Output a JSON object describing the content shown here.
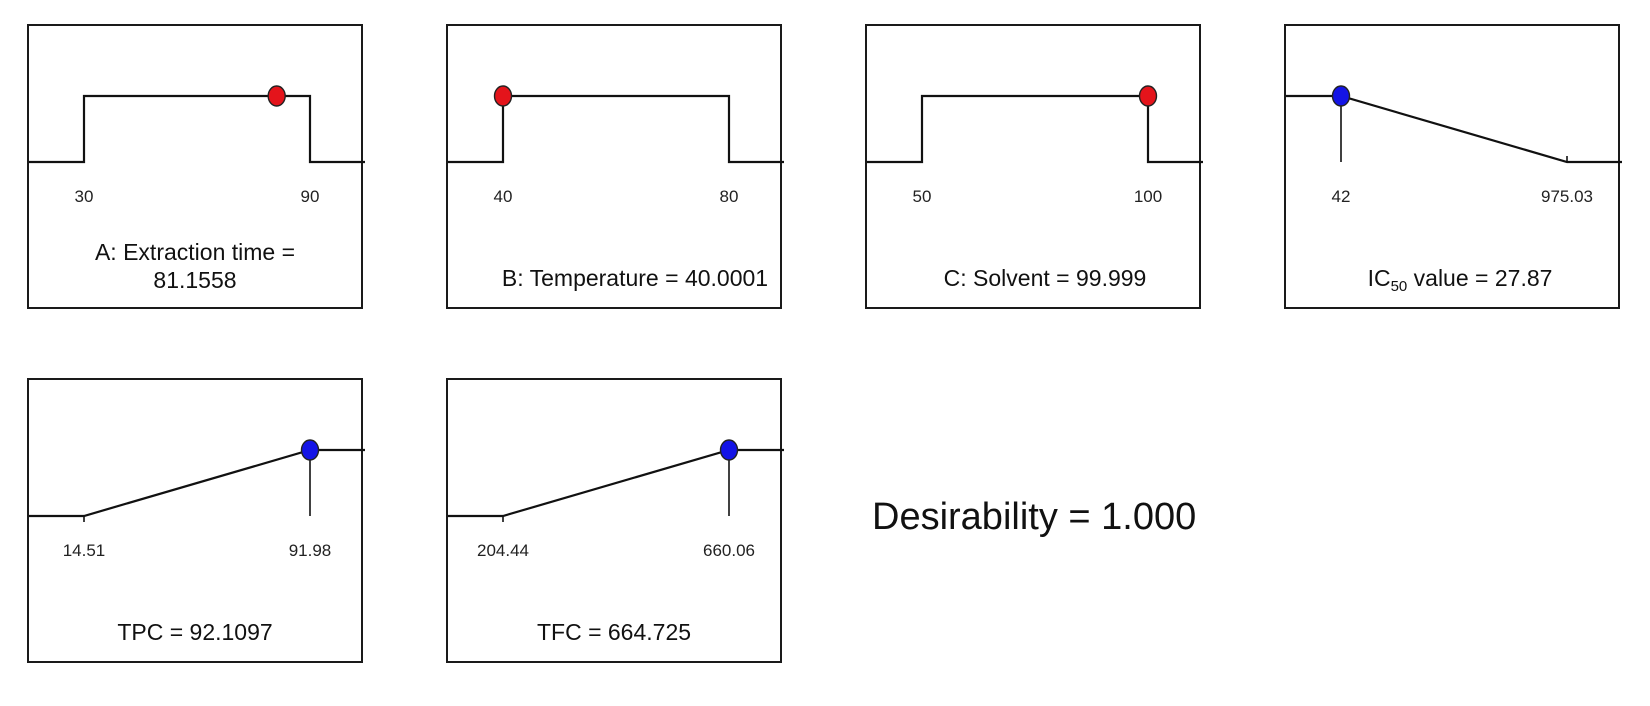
{
  "chart_data": [
    {
      "type": "desirability-ramp",
      "label_prefix": "A: Extraction time =",
      "value_text": "81.1558",
      "value": 81.1558,
      "low": 30,
      "high": 90,
      "low_label": "30",
      "high_label": "90",
      "shape": "target",
      "marker_color": "#e4141b"
    },
    {
      "type": "desirability-ramp",
      "label_prefix": "B: Temperature =",
      "value_text": "40.0001",
      "value": 40.0001,
      "low": 40,
      "high": 80,
      "low_label": "40",
      "high_label": "80",
      "shape": "target",
      "marker_color": "#e4141b"
    },
    {
      "type": "desirability-ramp",
      "label_prefix": "C: Solvent =",
      "value_text": "99.999",
      "value": 99.999,
      "low": 50,
      "high": 100,
      "low_label": "50",
      "high_label": "100",
      "shape": "target",
      "marker_color": "#e4141b"
    },
    {
      "type": "desirability-ramp",
      "label_prefix": "IC",
      "label_sub": "50",
      "label_suffix": " value =",
      "value_text": "27.87",
      "value": 27.87,
      "low": 42,
      "high": 975.03,
      "low_label": "42",
      "high_label": "975.03",
      "shape": "minimize",
      "marker_color": "#1414e6"
    },
    {
      "type": "desirability-ramp",
      "label_prefix": "TPC =",
      "value_text": "92.1097",
      "value": 92.1097,
      "low": 14.51,
      "high": 91.98,
      "low_label": "14.51",
      "high_label": "91.98",
      "shape": "maximize",
      "marker_color": "#1414e6"
    },
    {
      "type": "desirability-ramp",
      "label_prefix": "TFC =",
      "value_text": "664.725",
      "value": 664.725,
      "low": 204.44,
      "high": 660.06,
      "low_label": "204.44",
      "high_label": "660.06",
      "shape": "maximize",
      "marker_color": "#1414e6"
    }
  ],
  "desirability": {
    "label": "Desirability = 1.000"
  }
}
